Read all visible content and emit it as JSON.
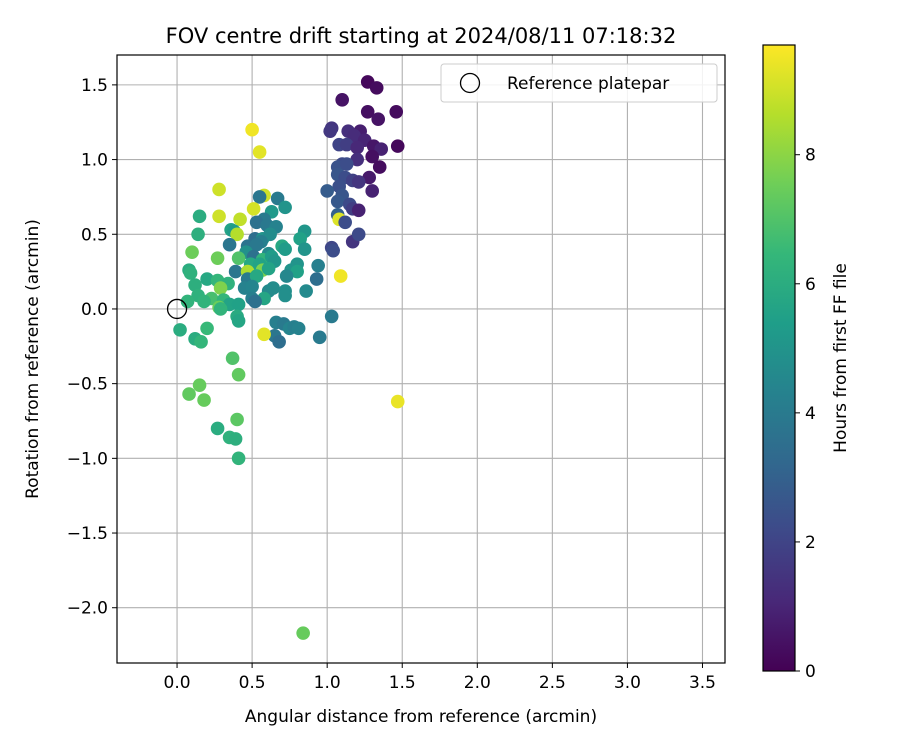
{
  "chart_data": {
    "type": "scatter",
    "title": "FOV centre drift starting at 2024/08/11 07:18:32",
    "xlabel": "Angular distance from reference (arcmin)",
    "ylabel": "Rotation from reference (arcmin)",
    "xlim": [
      -0.4,
      3.65
    ],
    "ylim": [
      -2.37,
      1.7
    ],
    "xticks": [
      0.0,
      0.5,
      1.0,
      1.5,
      2.0,
      2.5,
      3.0,
      3.5
    ],
    "xtick_labels": [
      "0.0",
      "0.5",
      "1.0",
      "1.5",
      "2.0",
      "2.5",
      "3.0",
      "3.5"
    ],
    "yticks": [
      -2.0,
      -1.5,
      -1.0,
      -0.5,
      0.0,
      0.5,
      1.0,
      1.5
    ],
    "ytick_labels": [
      "−2.0",
      "−1.5",
      "−1.0",
      "−0.5",
      "0.0",
      "0.5",
      "1.0",
      "1.5"
    ],
    "grid": true,
    "legend": {
      "position": "upper-right",
      "entries": [
        {
          "label": "Reference platepar",
          "marker": "open-circle"
        }
      ]
    },
    "reference_point": [
      0.0,
      0.0
    ],
    "colorbar": {
      "label": "Hours from first FF file",
      "colormap": "viridis",
      "range": [
        0,
        9.7
      ],
      "ticks": [
        0,
        2,
        4,
        6,
        8
      ],
      "tick_labels": [
        "0",
        "2",
        "4",
        "6",
        "8"
      ],
      "stops": [
        "#440154",
        "#482878",
        "#3e4989",
        "#31688e",
        "#26828e",
        "#1f9e89",
        "#35b779",
        "#6ece58",
        "#b5de2b",
        "#fde725"
      ]
    },
    "points": [
      [
        1.27,
        1.52,
        0.2
      ],
      [
        1.33,
        1.48,
        0.3
      ],
      [
        1.1,
        1.4,
        0.5
      ],
      [
        1.27,
        1.32,
        0.4
      ],
      [
        1.46,
        1.32,
        0.3
      ],
      [
        1.34,
        1.27,
        0.5
      ],
      [
        1.03,
        1.21,
        1.5
      ],
      [
        1.02,
        1.19,
        1.6
      ],
      [
        1.14,
        1.19,
        1.3
      ],
      [
        1.22,
        1.19,
        0.8
      ],
      [
        1.18,
        1.16,
        1.2
      ],
      [
        1.25,
        1.13,
        1.0
      ],
      [
        1.08,
        1.1,
        2.0
      ],
      [
        1.13,
        1.1,
        1.8
      ],
      [
        1.2,
        1.08,
        1.1
      ],
      [
        1.31,
        1.09,
        0.6
      ],
      [
        1.36,
        1.07,
        0.9
      ],
      [
        1.47,
        1.09,
        0.2
      ],
      [
        1.3,
        1.02,
        0.4
      ],
      [
        1.2,
        1.0,
        1.3
      ],
      [
        1.1,
        0.97,
        2.2
      ],
      [
        1.07,
        0.95,
        2.5
      ],
      [
        1.13,
        0.97,
        2.3
      ],
      [
        1.35,
        0.95,
        0.3
      ],
      [
        1.07,
        0.9,
        2.6
      ],
      [
        1.12,
        0.88,
        2.3
      ],
      [
        1.17,
        0.86,
        1.9
      ],
      [
        1.28,
        0.88,
        0.7
      ],
      [
        1.21,
        0.85,
        1.5
      ],
      [
        1.08,
        0.82,
        2.4
      ],
      [
        1.0,
        0.79,
        2.8
      ],
      [
        1.1,
        0.76,
        2.6
      ],
      [
        1.3,
        0.79,
        0.9
      ],
      [
        1.07,
        0.72,
        2.7
      ],
      [
        1.15,
        0.7,
        2.2
      ],
      [
        1.17,
        0.67,
        1.8
      ],
      [
        1.21,
        0.66,
        0.9
      ],
      [
        1.07,
        0.63,
        3.0
      ],
      [
        1.08,
        0.6,
        9.2
      ],
      [
        1.12,
        0.58,
        2.3
      ],
      [
        1.17,
        0.45,
        1.5
      ],
      [
        1.21,
        0.5,
        2.2
      ],
      [
        1.03,
        0.41,
        2.1
      ],
      [
        1.04,
        0.39,
        2.3
      ],
      [
        1.09,
        0.22,
        9.5
      ],
      [
        1.47,
        -0.62,
        9.4
      ],
      [
        0.5,
        1.2,
        9.5
      ],
      [
        0.55,
        1.05,
        9.3
      ],
      [
        0.28,
        0.8,
        9.0
      ],
      [
        0.58,
        0.76,
        9.0
      ],
      [
        0.55,
        0.75,
        3.8
      ],
      [
        0.67,
        0.74,
        4.0
      ],
      [
        0.72,
        0.68,
        5.0
      ],
      [
        0.51,
        0.67,
        9.1
      ],
      [
        0.63,
        0.65,
        5.2
      ],
      [
        0.15,
        0.62,
        6.0
      ],
      [
        0.28,
        0.62,
        9.0
      ],
      [
        0.42,
        0.6,
        8.8
      ],
      [
        0.58,
        0.6,
        4.0
      ],
      [
        0.53,
        0.58,
        3.6
      ],
      [
        0.6,
        0.56,
        3.9
      ],
      [
        0.66,
        0.55,
        4.3
      ],
      [
        0.36,
        0.53,
        5.6
      ],
      [
        0.38,
        0.52,
        5.3
      ],
      [
        0.14,
        0.5,
        6.1
      ],
      [
        0.4,
        0.5,
        8.6
      ],
      [
        0.52,
        0.47,
        3.5
      ],
      [
        0.57,
        0.47,
        5.0
      ],
      [
        0.62,
        0.5,
        4.7
      ],
      [
        0.85,
        0.52,
        5.1
      ],
      [
        0.56,
        0.45,
        4.2
      ],
      [
        0.82,
        0.47,
        5.5
      ],
      [
        0.35,
        0.43,
        3.8
      ],
      [
        0.47,
        0.42,
        3.7
      ],
      [
        0.53,
        0.43,
        3.9
      ],
      [
        0.7,
        0.42,
        5.8
      ],
      [
        0.72,
        0.4,
        5.3
      ],
      [
        0.85,
        0.4,
        5.0
      ],
      [
        0.1,
        0.38,
        7.5
      ],
      [
        0.46,
        0.38,
        4.9
      ],
      [
        0.61,
        0.37,
        4.6
      ],
      [
        0.27,
        0.34,
        7.5
      ],
      [
        0.41,
        0.34,
        7.0
      ],
      [
        0.51,
        0.35,
        3.6
      ],
      [
        0.57,
        0.33,
        6.3
      ],
      [
        0.63,
        0.35,
        5.3
      ],
      [
        0.49,
        0.3,
        5.8
      ],
      [
        0.55,
        0.3,
        5.6
      ],
      [
        0.65,
        0.32,
        5.1
      ],
      [
        0.8,
        0.3,
        5.0
      ],
      [
        0.94,
        0.29,
        4.2
      ],
      [
        0.08,
        0.26,
        6.0
      ],
      [
        0.09,
        0.24,
        6.2
      ],
      [
        0.39,
        0.25,
        3.8
      ],
      [
        0.47,
        0.25,
        8.5
      ],
      [
        0.57,
        0.26,
        7.8
      ],
      [
        0.61,
        0.27,
        5.6
      ],
      [
        0.76,
        0.26,
        5.0
      ],
      [
        0.8,
        0.25,
        5.5
      ],
      [
        0.2,
        0.2,
        5.8
      ],
      [
        0.27,
        0.19,
        6.4
      ],
      [
        0.34,
        0.17,
        6.2
      ],
      [
        0.47,
        0.2,
        4.0
      ],
      [
        0.53,
        0.22,
        5.8
      ],
      [
        0.73,
        0.22,
        4.5
      ],
      [
        0.93,
        0.2,
        3.5
      ],
      [
        0.12,
        0.16,
        6.1
      ],
      [
        0.29,
        0.14,
        7.8
      ],
      [
        0.45,
        0.14,
        4.3
      ],
      [
        0.5,
        0.15,
        4.4
      ],
      [
        0.61,
        0.12,
        4.6
      ],
      [
        0.64,
        0.14,
        4.7
      ],
      [
        0.72,
        0.12,
        4.8
      ],
      [
        0.86,
        0.12,
        4.6
      ],
      [
        0.14,
        0.09,
        6.2
      ],
      [
        0.23,
        0.07,
        6.8
      ],
      [
        0.31,
        0.06,
        6.4
      ],
      [
        0.5,
        0.07,
        4.2
      ],
      [
        0.58,
        0.07,
        5.7
      ],
      [
        0.72,
        0.09,
        4.8
      ],
      [
        0.07,
        0.05,
        6.3
      ],
      [
        0.18,
        0.05,
        6.3
      ],
      [
        0.35,
        0.03,
        5.6
      ],
      [
        0.41,
        0.03,
        5.5
      ],
      [
        0.52,
        0.05,
        3.6
      ],
      [
        0.28,
        0.01,
        7.5
      ],
      [
        0.29,
        0.0,
        6.3
      ],
      [
        0.4,
        -0.05,
        5.9
      ],
      [
        0.41,
        -0.08,
        5.7
      ],
      [
        0.66,
        -0.09,
        4.2
      ],
      [
        0.71,
        -0.1,
        4.0
      ],
      [
        0.75,
        -0.13,
        4.4
      ],
      [
        0.78,
        -0.12,
        4.2
      ],
      [
        0.81,
        -0.13,
        4.3
      ],
      [
        1.03,
        -0.05,
        4.0
      ],
      [
        0.02,
        -0.14,
        6.0
      ],
      [
        0.2,
        -0.13,
        6.5
      ],
      [
        0.65,
        -0.18,
        3.8
      ],
      [
        0.68,
        -0.22,
        3.5
      ],
      [
        0.95,
        -0.19,
        4.0
      ],
      [
        0.58,
        -0.17,
        9.3
      ],
      [
        0.12,
        -0.2,
        6.0
      ],
      [
        0.16,
        -0.22,
        6.4
      ],
      [
        0.37,
        -0.33,
        7.0
      ],
      [
        0.41,
        -0.44,
        7.3
      ],
      [
        0.15,
        -0.51,
        7.4
      ],
      [
        0.08,
        -0.57,
        7.3
      ],
      [
        0.18,
        -0.61,
        7.4
      ],
      [
        0.4,
        -0.74,
        7.2
      ],
      [
        0.27,
        -0.8,
        6.0
      ],
      [
        0.35,
        -0.86,
        6.2
      ],
      [
        0.39,
        -0.87,
        6.1
      ],
      [
        0.41,
        -1.0,
        6.3
      ],
      [
        0.84,
        -2.17,
        7.4
      ]
    ]
  }
}
